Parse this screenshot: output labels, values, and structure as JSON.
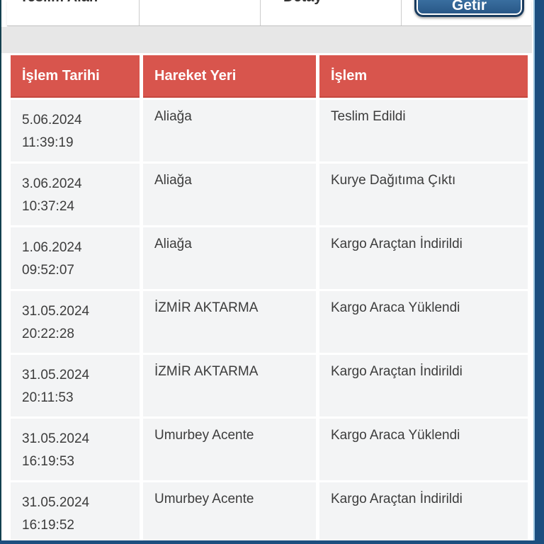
{
  "page": {
    "top_bar": {
      "teslim_alan_label": "Teslim Alan",
      "detay_label": "Detay",
      "getir_button_label": "Getir"
    },
    "table": {
      "headers": [
        "İşlem Tarihi",
        "Hareket Yeri",
        "İşlem"
      ],
      "rows": [
        {
          "date": "5.06.2024",
          "time": "11:39:19",
          "location": "Aliağa",
          "action": "Teslim Edildi"
        },
        {
          "date": "3.06.2024",
          "time": "10:37:24",
          "location": "Aliağa",
          "action": "Kurye Dağıtıma Çıktı"
        },
        {
          "date": "1.06.2024",
          "time": "09:52:07",
          "location": "Aliağa",
          "action": "Kargo Araçtan İndirildi"
        },
        {
          "date": "31.05.2024",
          "time": "20:22:28",
          "location": "İZMİR AKTARMA",
          "action": "Kargo Araca Yüklendi"
        },
        {
          "date": "31.05.2024",
          "time": "20:11:53",
          "location": "İZMİR AKTARMA",
          "action": "Kargo Araçtan İndirildi"
        },
        {
          "date": "31.05.2024",
          "time": "16:19:53",
          "location": "Umurbey Acente",
          "action": "Kargo Araca Yüklendi"
        },
        {
          "date": "31.05.2024",
          "time": "16:19:52",
          "location": "Umurbey Acente",
          "action": "Kargo Araçtan İndirildi"
        }
      ]
    },
    "colors": {
      "header_bg": "#d8554d",
      "row_bg": "#f3f4f5",
      "accent_navy": "#1c4e7f",
      "button_border": "#1a3c5f",
      "band_gray": "#e7e7e7"
    }
  }
}
